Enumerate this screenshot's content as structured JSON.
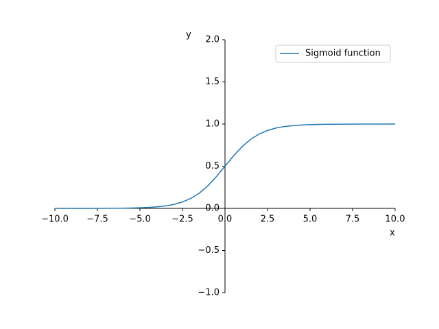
{
  "chart_data": {
    "type": "line",
    "x_label": "x",
    "y_label": "y",
    "x": [
      -10,
      -9.5,
      -9,
      -8.5,
      -8,
      -7.5,
      -7,
      -6.5,
      -6,
      -5.5,
      -5,
      -4.5,
      -4,
      -3.5,
      -3,
      -2.5,
      -2,
      -1.5,
      -1,
      -0.5,
      0,
      0.5,
      1,
      1.5,
      2,
      2.5,
      3,
      3.5,
      4,
      4.5,
      5,
      5.5,
      6,
      6.5,
      7,
      7.5,
      8,
      8.5,
      9,
      9.5,
      10
    ],
    "series": [
      {
        "name": "Sigmoid function",
        "color": "#1f77b4",
        "values": [
          0.0,
          0.0,
          0.0,
          0.0,
          0.0,
          0.001,
          0.001,
          0.002,
          0.002,
          0.004,
          0.007,
          0.011,
          0.018,
          0.029,
          0.047,
          0.076,
          0.119,
          0.182,
          0.269,
          0.378,
          0.5,
          0.622,
          0.731,
          0.818,
          0.881,
          0.924,
          0.953,
          0.971,
          0.982,
          0.989,
          0.993,
          0.996,
          0.998,
          0.998,
          0.999,
          0.999,
          1.0,
          1.0,
          1.0,
          1.0,
          1.0
        ]
      }
    ],
    "xlim": [
      -10,
      10
    ],
    "ylim": [
      -1,
      2
    ],
    "xticks": [
      {
        "value": -10,
        "label": "−10.0"
      },
      {
        "value": -7.5,
        "label": "−7.5"
      },
      {
        "value": -5,
        "label": "−5.0"
      },
      {
        "value": -2.5,
        "label": "−2.5"
      },
      {
        "value": 0,
        "label": "0.0"
      },
      {
        "value": 2.5,
        "label": "2.5"
      },
      {
        "value": 5,
        "label": "5.0"
      },
      {
        "value": 7.5,
        "label": "7.5"
      },
      {
        "value": 10,
        "label": "10.0"
      }
    ],
    "yticks": [
      {
        "value": -1,
        "label": "−1.0"
      },
      {
        "value": -0.5,
        "label": "−0.5"
      },
      {
        "value": 0,
        "label": "0.0"
      },
      {
        "value": 0.5,
        "label": "0.5"
      },
      {
        "value": 1,
        "label": "1.0"
      },
      {
        "value": 1.5,
        "label": "1.5"
      },
      {
        "value": 2,
        "label": "2.0"
      }
    ],
    "legend": "upper right"
  }
}
